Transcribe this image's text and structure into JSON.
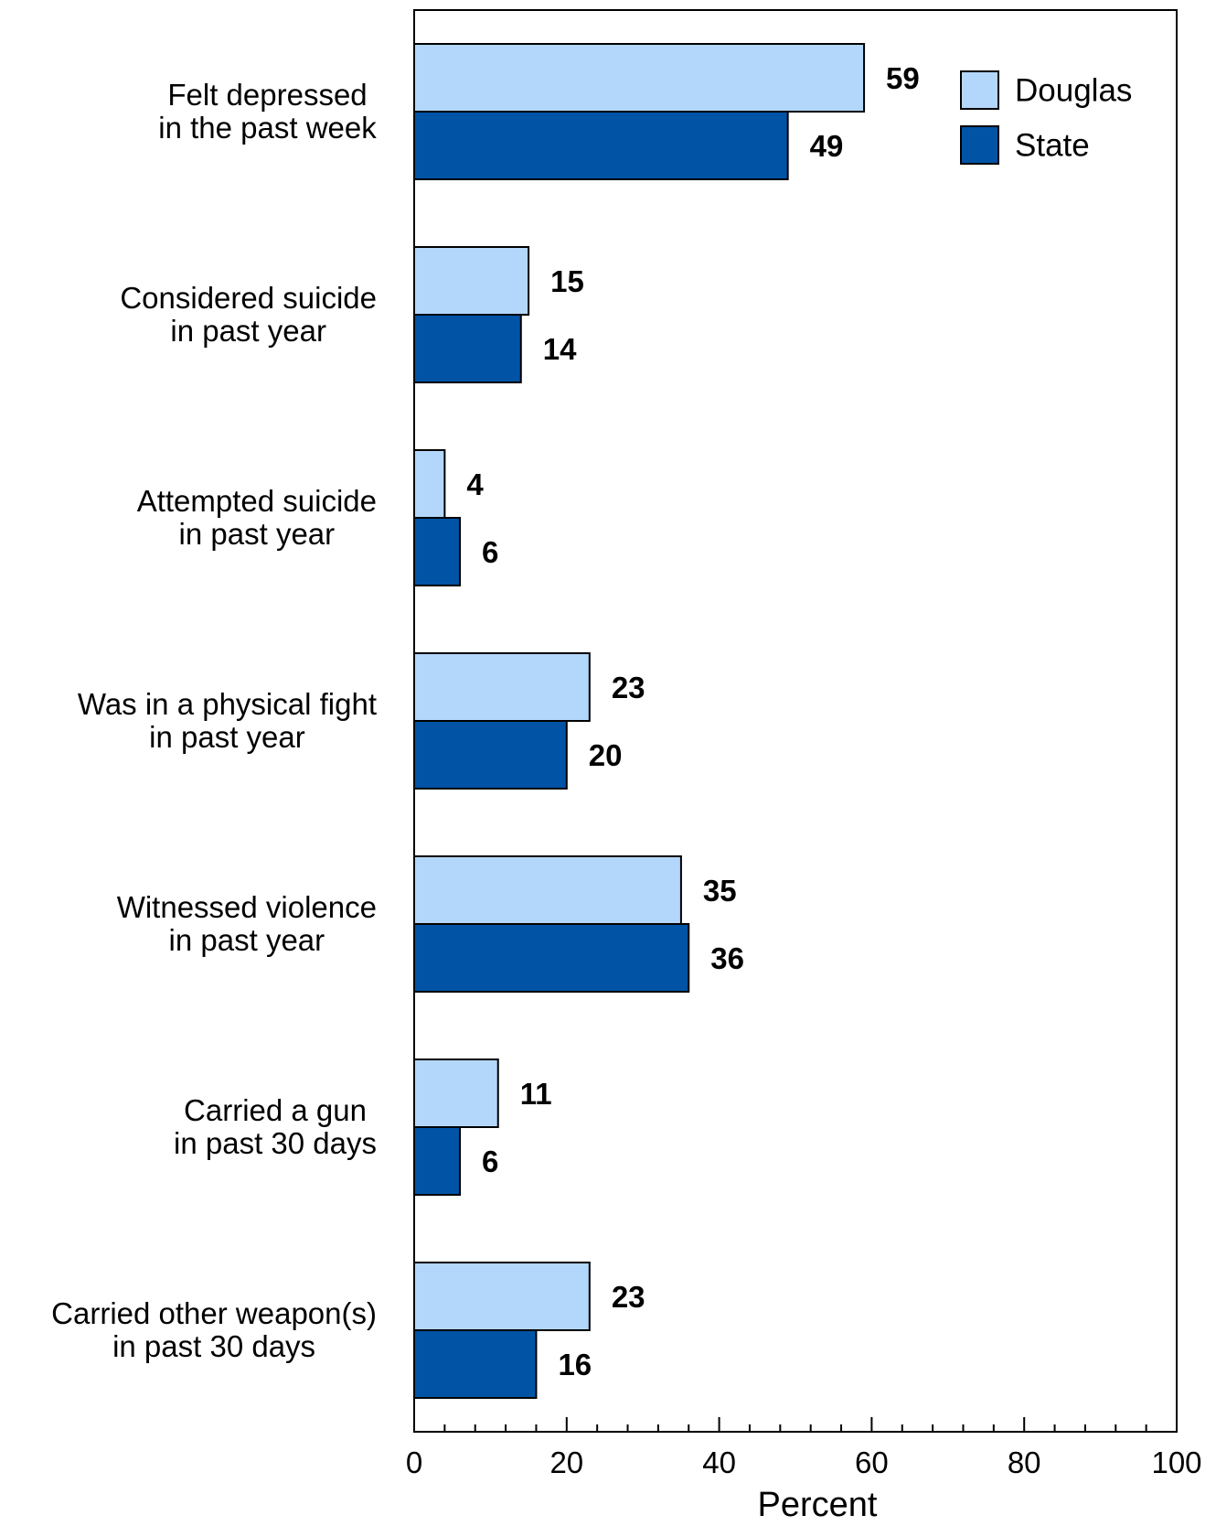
{
  "chart_data": {
    "type": "bar",
    "orientation": "horizontal",
    "title": "",
    "xlabel": "Percent",
    "ylabel": "",
    "xlim": [
      0,
      100
    ],
    "x_ticks": [
      "0",
      "20",
      "40",
      "60",
      "80",
      "100"
    ],
    "grid": false,
    "legend_position": "top-right",
    "categories": [
      [
        "Felt depressed",
        "in the past week"
      ],
      [
        "Considered suicide",
        "in past year"
      ],
      [
        "Attempted suicide",
        "in past year"
      ],
      [
        "Was in a physical fight",
        "in past year"
      ],
      [
        "Witnessed violence",
        "in past year"
      ],
      [
        "Carried a gun",
        "in past 30 days"
      ],
      [
        "Carried other weapon(s)",
        "in past 30 days"
      ]
    ],
    "series": [
      {
        "name": "Douglas",
        "color": "#b3d7fb",
        "values": [
          59,
          15,
          4,
          23,
          35,
          11,
          23
        ]
      },
      {
        "name": "State",
        "color": "#0153a5",
        "values": [
          49,
          14,
          6,
          20,
          36,
          6,
          16
        ]
      }
    ]
  }
}
